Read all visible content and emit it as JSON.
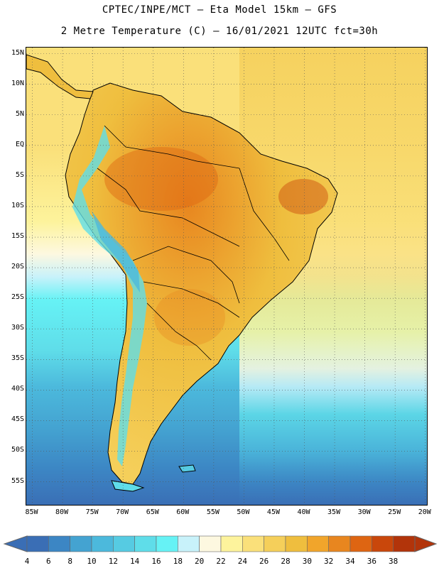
{
  "header": {
    "line1": "CPTEC/INPE/MCT –  Eta Model 15km – GFS",
    "line2": "2 Metre Temperature (C) – 16/01/2021 12UTC fct=30h"
  },
  "map": {
    "lat_ticks": [
      "15N",
      "10N",
      "5N",
      "EQ",
      "5S",
      "10S",
      "15S",
      "20S",
      "25S",
      "30S",
      "35S",
      "40S",
      "45S",
      "50S",
      "55S"
    ],
    "lon_ticks": [
      "85W",
      "80W",
      "75W",
      "70W",
      "65W",
      "60W",
      "55W",
      "50W",
      "45W",
      "40W",
      "35W",
      "30W",
      "25W",
      "20W"
    ],
    "extent": {
      "lon": [
        -86,
        -19.5
      ],
      "lat": [
        16,
        -59
      ]
    },
    "gridline_style": "dotted"
  },
  "colorbar": {
    "levels": [
      "4",
      "6",
      "8",
      "10",
      "12",
      "14",
      "16",
      "18",
      "20",
      "22",
      "24",
      "26",
      "28",
      "30",
      "32",
      "34",
      "36",
      "38"
    ],
    "colors": [
      "#3a6eb5",
      "#3c86c4",
      "#44a3d1",
      "#4cb9dc",
      "#56cbe2",
      "#5fdde9",
      "#66f2f5",
      "#c8f2fa",
      "#fdf8e0",
      "#fdf39c",
      "#fae07a",
      "#f5cf5a",
      "#efbe3e",
      "#f1a52b",
      "#e8861f",
      "#de6512",
      "#c9470b",
      "#b2340a"
    ]
  }
}
